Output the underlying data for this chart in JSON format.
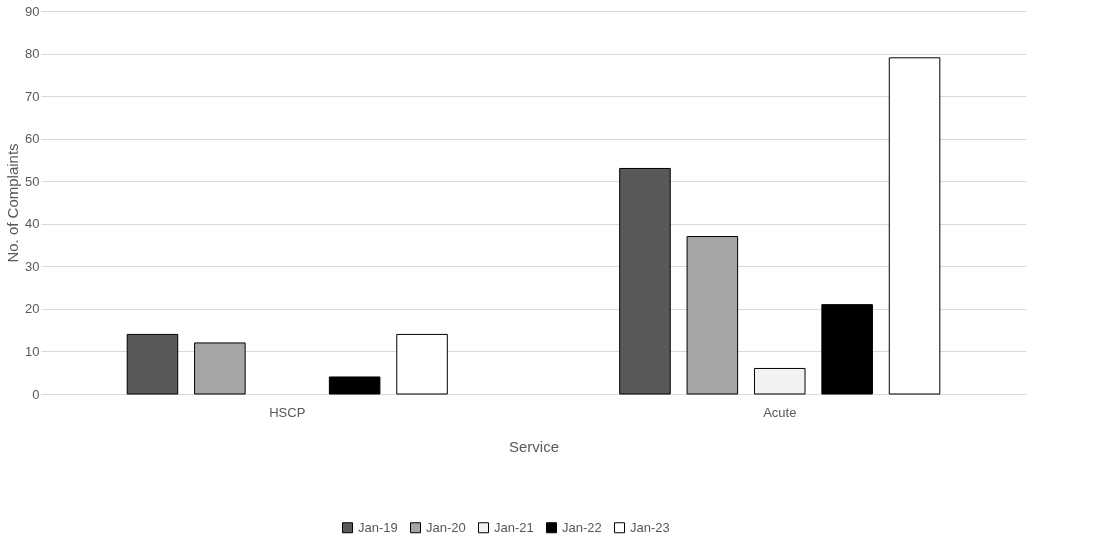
{
  "chart_data": {
    "type": "bar",
    "xlabel": "Service",
    "ylabel": "No. of Complaints",
    "categories": [
      "HSCP",
      "Acute"
    ],
    "series": [
      {
        "name": "Jan-19",
        "color": "#595959",
        "values": [
          14,
          53
        ]
      },
      {
        "name": "Jan-20",
        "color": "#a6a6a6",
        "values": [
          12,
          37
        ]
      },
      {
        "name": "Jan-21",
        "color": "#f2f2f2",
        "values": [
          0,
          6
        ]
      },
      {
        "name": "Jan-22",
        "color": "#000000",
        "values": [
          4,
          21
        ]
      },
      {
        "name": "Jan-23",
        "color": "#ffffff",
        "values": [
          14,
          79
        ]
      }
    ],
    "ylim": [
      0,
      90
    ],
    "yticks": [
      0,
      10,
      20,
      30,
      40,
      50,
      60,
      70,
      80,
      90
    ],
    "grid": "y",
    "legend": "bottom"
  }
}
